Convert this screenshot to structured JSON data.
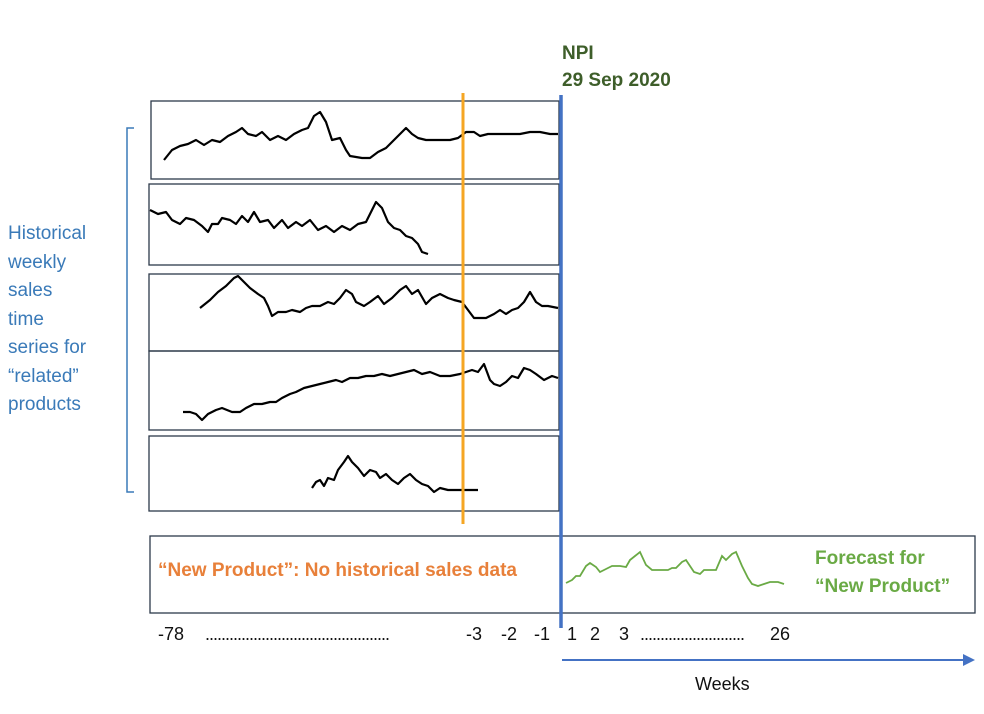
{
  "npi": {
    "label": "NPI",
    "date": "29 Sep 2020"
  },
  "left_label": [
    "Historical",
    "weekly",
    "sales",
    "time",
    "series for",
    "“related”",
    "products"
  ],
  "new_product_label": "“New Product”: No historical sales data",
  "forecast_label": [
    "Forecast for",
    "“New Product”"
  ],
  "axis": {
    "ticks": [
      "-78",
      "-3",
      "-2",
      "-1",
      "1",
      "2",
      "3",
      "26"
    ],
    "dots_left": "..............................................",
    "dots_right": "..........................",
    "title": "Weeks"
  },
  "colors": {
    "npi_line": "#4472c4",
    "cutoff_line": "#f5a623",
    "forecast": "#6aaa45",
    "npi_text": "#3e5e2a",
    "hist_text": "#3a7ab8",
    "new_product_text": "#e8803a"
  }
}
